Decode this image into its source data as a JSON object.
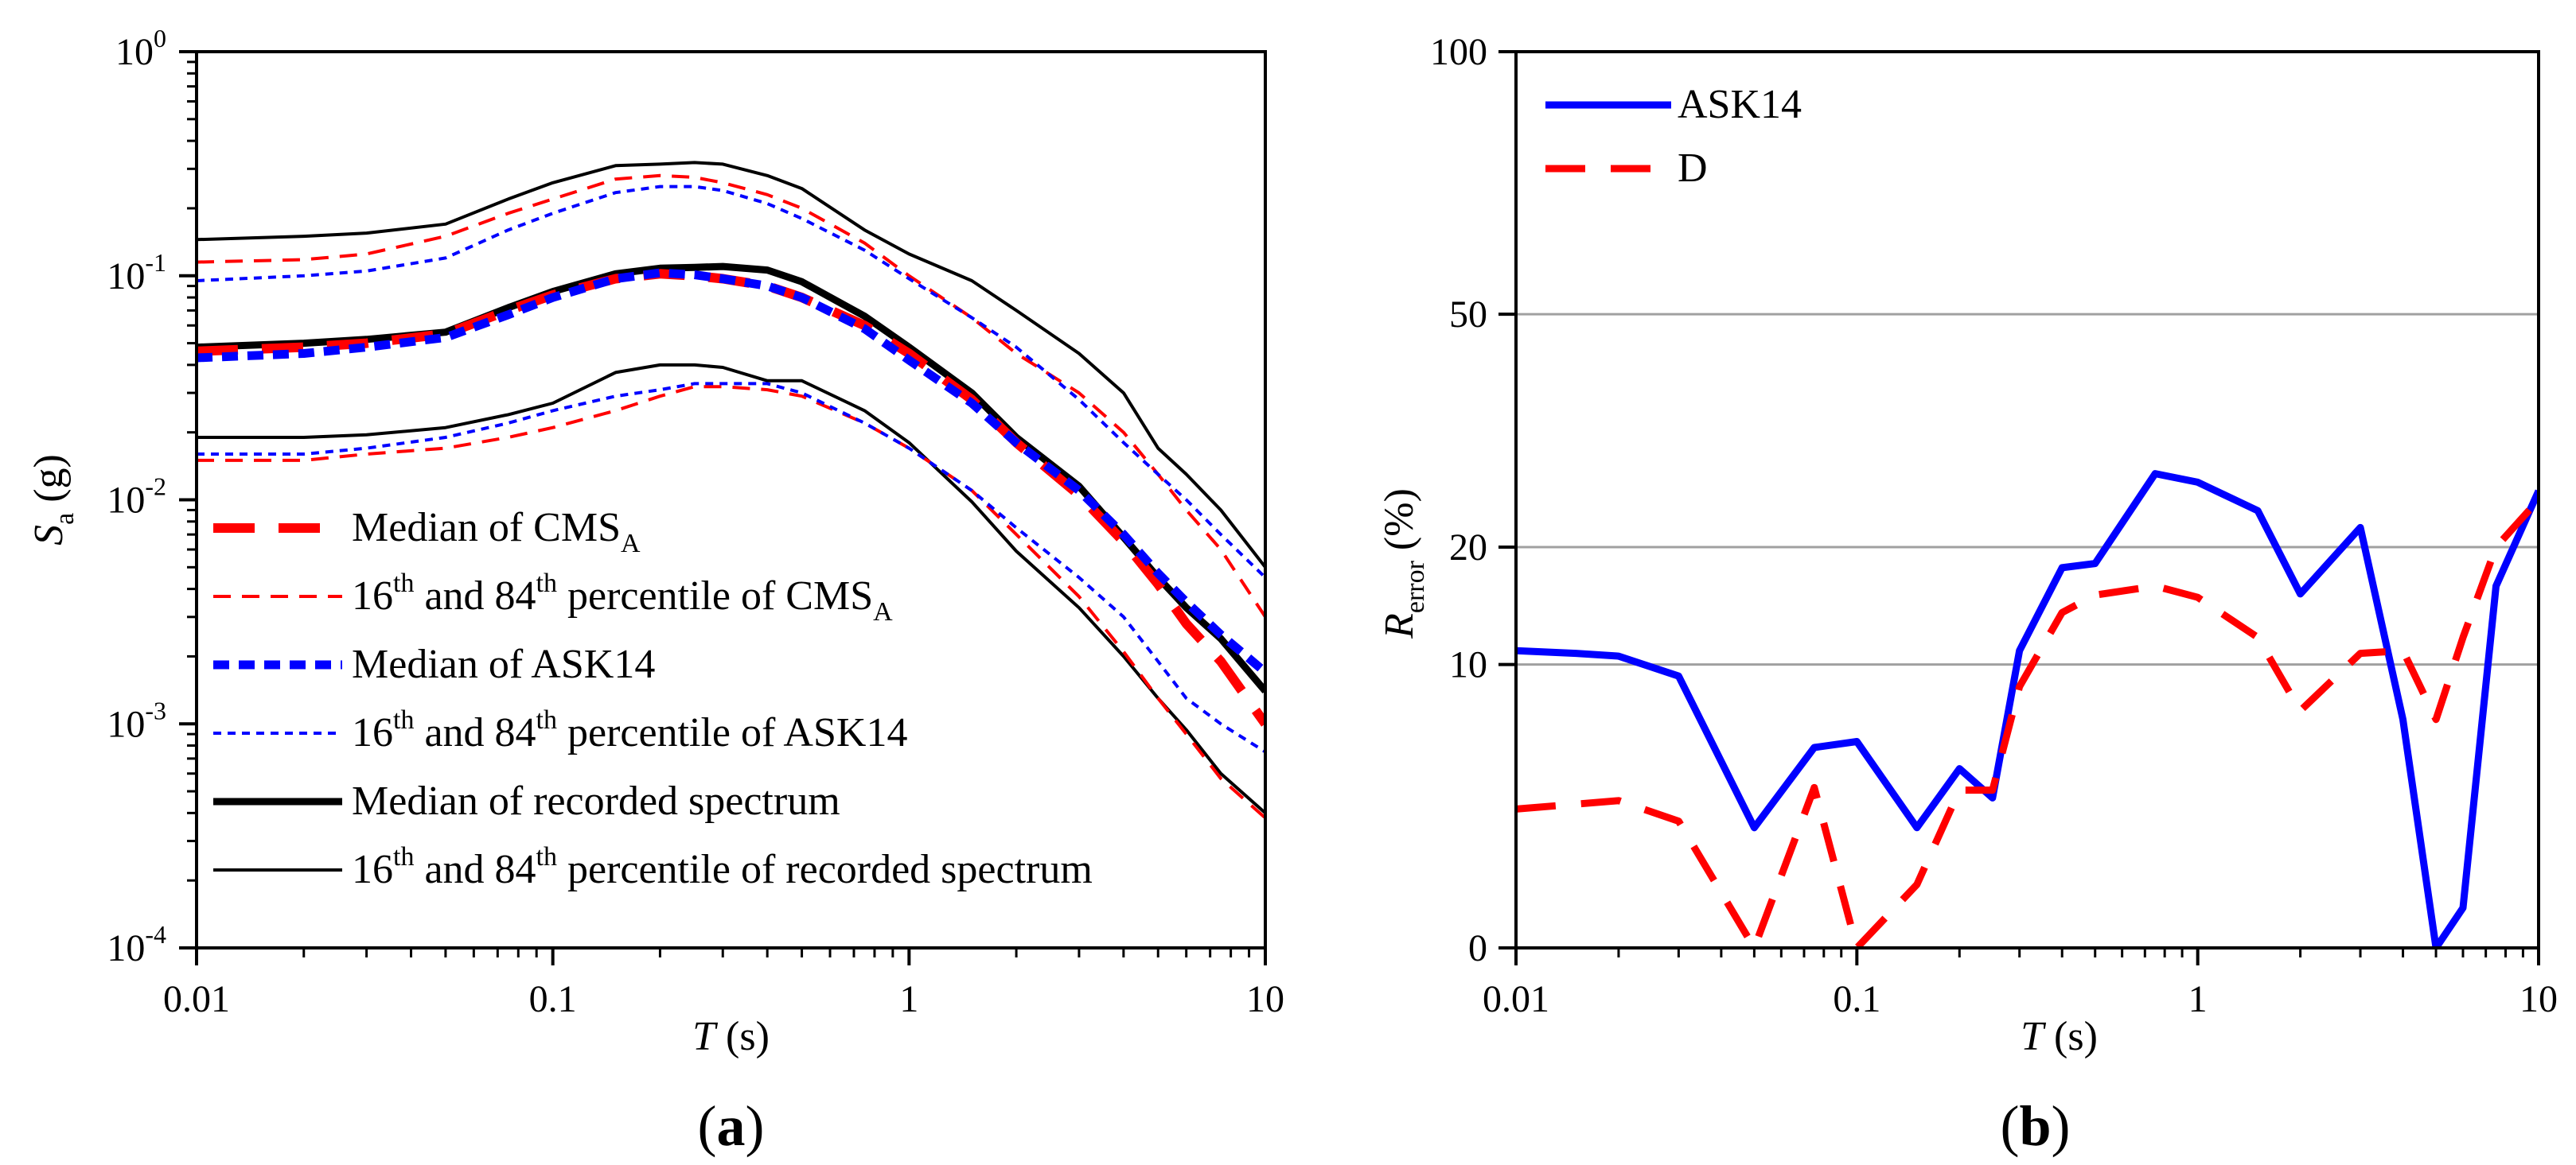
{
  "chart_data": [
    {
      "type": "line",
      "panel_label": "a",
      "xlabel": "T",
      "xlabel_unit": "(s)",
      "ylabel": "S",
      "ylabel_sub": "a",
      "ylabel_unit": "(g)",
      "xscale": "log",
      "yscale": "log",
      "xlim": [
        0.01,
        10
      ],
      "ylim": [
        0.0001,
        1
      ],
      "x_ticks": [
        {
          "v": 0.01,
          "t": "0.01"
        },
        {
          "v": 0.1,
          "t": "0.1"
        },
        {
          "v": 1,
          "t": "1"
        },
        {
          "v": 10,
          "t": "10"
        }
      ],
      "y_ticks": [
        {
          "v": 1,
          "base": "10",
          "exp": "0"
        },
        {
          "v": 0.1,
          "base": "10",
          "exp": "-1"
        },
        {
          "v": 0.01,
          "base": "10",
          "exp": "-2"
        },
        {
          "v": 0.001,
          "base": "10",
          "exp": "-3"
        },
        {
          "v": 0.0001,
          "base": "10",
          "exp": "-4"
        }
      ],
      "legend_position": "bottom-left",
      "legend": [
        {
          "parts": [
            {
              "t": "Median of CMS"
            },
            {
              "t": "A",
              "sub": true
            }
          ],
          "color": "#ff0000",
          "style": "median-dash"
        },
        {
          "parts": [
            {
              "t": "16"
            },
            {
              "t": "th",
              "sup": true
            },
            {
              "t": " and 84"
            },
            {
              "t": "th",
              "sup": true
            },
            {
              "t": " percentile of CMS"
            },
            {
              "t": "A",
              "sub": true
            }
          ],
          "color": "#ff0000",
          "style": "thin-dash"
        },
        {
          "parts": [
            {
              "t": "Median of  ASK14"
            }
          ],
          "color": "#0000ff",
          "style": "short-dash"
        },
        {
          "parts": [
            {
              "t": "16"
            },
            {
              "t": "th",
              "sup": true
            },
            {
              "t": " and 84"
            },
            {
              "t": "th",
              "sup": true
            },
            {
              "t": " percentile of ASK14"
            }
          ],
          "color": "#0000ff",
          "style": "thin-short-dash"
        },
        {
          "parts": [
            {
              "t": "Median of recorded spectrum"
            }
          ],
          "color": "#000000",
          "style": "thick-solid"
        },
        {
          "parts": [
            {
              "t": "16"
            },
            {
              "t": "th",
              "sup": true
            },
            {
              "t": " and 84"
            },
            {
              "t": "th",
              "sup": true
            },
            {
              "t": " percentile of recorded spectrum"
            }
          ],
          "color": "#000000",
          "style": "thin-solid"
        }
      ],
      "series": [
        {
          "name": "recorded-84th",
          "color": "#000000",
          "style": "thin-solid",
          "x": [
            0.01,
            0.02,
            0.03,
            0.05,
            0.075,
            0.1,
            0.15,
            0.2,
            0.25,
            0.3,
            0.4,
            0.5,
            0.75,
            1,
            1.5,
            2,
            3,
            4,
            5,
            6,
            7.5,
            10
          ],
          "y": [
            0.145,
            0.15,
            0.155,
            0.17,
            0.22,
            0.26,
            0.31,
            0.315,
            0.32,
            0.315,
            0.28,
            0.245,
            0.16,
            0.125,
            0.095,
            0.07,
            0.045,
            0.03,
            0.017,
            0.013,
            0.009,
            0.005
          ]
        },
        {
          "name": "recorded-median",
          "color": "#000000",
          "style": "thick-solid",
          "x": [
            0.01,
            0.02,
            0.03,
            0.05,
            0.075,
            0.1,
            0.15,
            0.2,
            0.25,
            0.3,
            0.4,
            0.5,
            0.75,
            1,
            1.5,
            2,
            3,
            4,
            5,
            6,
            7.5,
            10
          ],
          "y": [
            0.048,
            0.05,
            0.052,
            0.056,
            0.072,
            0.085,
            0.102,
            0.108,
            0.109,
            0.11,
            0.106,
            0.094,
            0.066,
            0.048,
            0.03,
            0.019,
            0.0115,
            0.0068,
            0.0045,
            0.0033,
            0.0024,
            0.0014
          ]
        },
        {
          "name": "recorded-16th",
          "color": "#000000",
          "style": "thin-solid",
          "x": [
            0.01,
            0.02,
            0.03,
            0.05,
            0.075,
            0.1,
            0.15,
            0.2,
            0.25,
            0.3,
            0.4,
            0.5,
            0.75,
            1,
            1.5,
            2,
            3,
            4,
            5,
            6,
            7.5,
            10
          ],
          "y": [
            0.019,
            0.019,
            0.0195,
            0.021,
            0.024,
            0.027,
            0.037,
            0.04,
            0.04,
            0.039,
            0.034,
            0.034,
            0.025,
            0.018,
            0.0098,
            0.0059,
            0.0033,
            0.002,
            0.0013,
            0.00094,
            0.0006,
            0.0004
          ]
        },
        {
          "name": "cms-84th",
          "color": "#ff0000",
          "style": "thin-dash",
          "x": [
            0.01,
            0.02,
            0.03,
            0.05,
            0.075,
            0.1,
            0.15,
            0.2,
            0.25,
            0.3,
            0.4,
            0.5,
            0.75,
            1,
            1.5,
            2,
            3,
            4,
            5,
            6,
            7.5,
            10
          ],
          "y": [
            0.115,
            0.118,
            0.125,
            0.15,
            0.19,
            0.22,
            0.27,
            0.28,
            0.275,
            0.26,
            0.23,
            0.2,
            0.14,
            0.1,
            0.065,
            0.045,
            0.03,
            0.02,
            0.013,
            0.009,
            0.006,
            0.003
          ]
        },
        {
          "name": "cms-median",
          "color": "#ff0000",
          "style": "median-dash",
          "x": [
            0.01,
            0.02,
            0.03,
            0.05,
            0.075,
            0.1,
            0.15,
            0.2,
            0.25,
            0.3,
            0.4,
            0.5,
            0.75,
            1,
            1.5,
            2,
            3,
            4,
            5,
            6,
            7.5,
            10
          ],
          "y": [
            0.046,
            0.048,
            0.05,
            0.055,
            0.07,
            0.082,
            0.097,
            0.102,
            0.1,
            0.097,
            0.09,
            0.08,
            0.06,
            0.045,
            0.028,
            0.018,
            0.0105,
            0.0065,
            0.0042,
            0.0028,
            0.0019,
            0.001
          ]
        },
        {
          "name": "cms-16th",
          "color": "#ff0000",
          "style": "thin-dash",
          "x": [
            0.01,
            0.02,
            0.03,
            0.05,
            0.075,
            0.1,
            0.15,
            0.2,
            0.25,
            0.3,
            0.4,
            0.5,
            0.75,
            1,
            1.5,
            2,
            3,
            4,
            5,
            6,
            7.5,
            10
          ],
          "y": [
            0.015,
            0.015,
            0.016,
            0.017,
            0.019,
            0.021,
            0.025,
            0.029,
            0.032,
            0.032,
            0.031,
            0.029,
            0.022,
            0.017,
            0.011,
            0.007,
            0.0037,
            0.0021,
            0.0013,
            0.0009,
            0.00057,
            0.00038
          ]
        },
        {
          "name": "ask14-84th",
          "color": "#0000ff",
          "style": "thin-short-dash",
          "x": [
            0.01,
            0.02,
            0.03,
            0.05,
            0.075,
            0.1,
            0.15,
            0.2,
            0.25,
            0.3,
            0.4,
            0.5,
            0.75,
            1,
            1.5,
            2,
            3,
            4,
            5,
            6,
            7.5,
            10
          ],
          "y": [
            0.095,
            0.1,
            0.105,
            0.12,
            0.16,
            0.19,
            0.235,
            0.25,
            0.25,
            0.24,
            0.21,
            0.18,
            0.13,
            0.097,
            0.065,
            0.048,
            0.028,
            0.018,
            0.013,
            0.01,
            0.007,
            0.0045
          ]
        },
        {
          "name": "ask14-median",
          "color": "#0000ff",
          "style": "short-dash",
          "x": [
            0.01,
            0.02,
            0.03,
            0.05,
            0.075,
            0.1,
            0.15,
            0.2,
            0.25,
            0.3,
            0.4,
            0.5,
            0.75,
            1,
            1.5,
            2,
            3,
            4,
            5,
            6,
            7.5,
            10
          ],
          "y": [
            0.043,
            0.045,
            0.048,
            0.053,
            0.067,
            0.08,
            0.097,
            0.103,
            0.101,
            0.097,
            0.09,
            0.08,
            0.058,
            0.042,
            0.027,
            0.018,
            0.011,
            0.007,
            0.0047,
            0.0035,
            0.0025,
            0.0017
          ]
        },
        {
          "name": "ask14-16th",
          "color": "#0000ff",
          "style": "thin-short-dash",
          "x": [
            0.01,
            0.02,
            0.03,
            0.05,
            0.075,
            0.1,
            0.15,
            0.2,
            0.25,
            0.3,
            0.4,
            0.5,
            0.75,
            1,
            1.5,
            2,
            3,
            4,
            5,
            6,
            7.5,
            10
          ],
          "y": [
            0.016,
            0.016,
            0.017,
            0.019,
            0.022,
            0.025,
            0.029,
            0.031,
            0.033,
            0.033,
            0.033,
            0.03,
            0.022,
            0.017,
            0.011,
            0.0075,
            0.0045,
            0.003,
            0.0019,
            0.0013,
            0.001,
            0.00075
          ]
        }
      ]
    },
    {
      "type": "line",
      "panel_label": "b",
      "xlabel": "T",
      "xlabel_unit": "(s)",
      "ylabel": "R",
      "ylabel_sub": "error",
      "ylabel_unit": "(%)",
      "xscale": "log",
      "yscale": "sqrt",
      "xlim": [
        0.01,
        10
      ],
      "ylim": [
        0,
        100
      ],
      "x_ticks": [
        {
          "v": 0.01,
          "t": "0.01"
        },
        {
          "v": 0.1,
          "t": "0.1"
        },
        {
          "v": 1,
          "t": "1"
        },
        {
          "v": 10,
          "t": "10"
        }
      ],
      "y_ticks": [
        {
          "v": 0,
          "t": "0"
        },
        {
          "v": 10,
          "t": "10"
        },
        {
          "v": 20,
          "t": "20"
        },
        {
          "v": 50,
          "t": "50"
        },
        {
          "v": 100,
          "t": "100"
        }
      ],
      "gridlines_y": [
        10,
        20,
        50
      ],
      "legend_position": "top-left",
      "legend": [
        {
          "parts": [
            {
              "t": "ASK14"
            }
          ],
          "color": "#0000ff",
          "style": "solid"
        },
        {
          "parts": [
            {
              "t": "D"
            }
          ],
          "color": "#ff0000",
          "style": "long-dash"
        }
      ],
      "series": [
        {
          "name": "ASK14",
          "color": "#0000ff",
          "style": "solid",
          "x": [
            0.01,
            0.015,
            0.02,
            0.03,
            0.05,
            0.075,
            0.1,
            0.15,
            0.2,
            0.25,
            0.3,
            0.4,
            0.5,
            0.75,
            1,
            1.5,
            2,
            3,
            4,
            5,
            6,
            7.5,
            10
          ],
          "y": [
            11,
            10.8,
            10.6,
            9.2,
            1.8,
            5,
            5.3,
            1.8,
            4,
            2.8,
            11,
            18,
            18.4,
            28,
            27,
            23.8,
            15.6,
            22,
            6.5,
            0,
            0.2,
            16.3,
            26
          ]
        },
        {
          "name": "D",
          "color": "#ff0000",
          "style": "long-dash",
          "x": [
            0.01,
            0.02,
            0.03,
            0.05,
            0.075,
            0.1,
            0.15,
            0.2,
            0.25,
            0.3,
            0.4,
            0.5,
            0.75,
            1,
            1.5,
            2,
            3,
            4,
            5,
            6,
            7.5,
            10
          ],
          "y": [
            2.4,
            2.7,
            2,
            0,
            3.2,
            0,
            0.5,
            3.1,
            3.1,
            8.5,
            14,
            15.5,
            16.3,
            15.3,
            12,
            7,
            10.8,
            11,
            6.5,
            12,
            20,
            25
          ]
        }
      ]
    }
  ]
}
